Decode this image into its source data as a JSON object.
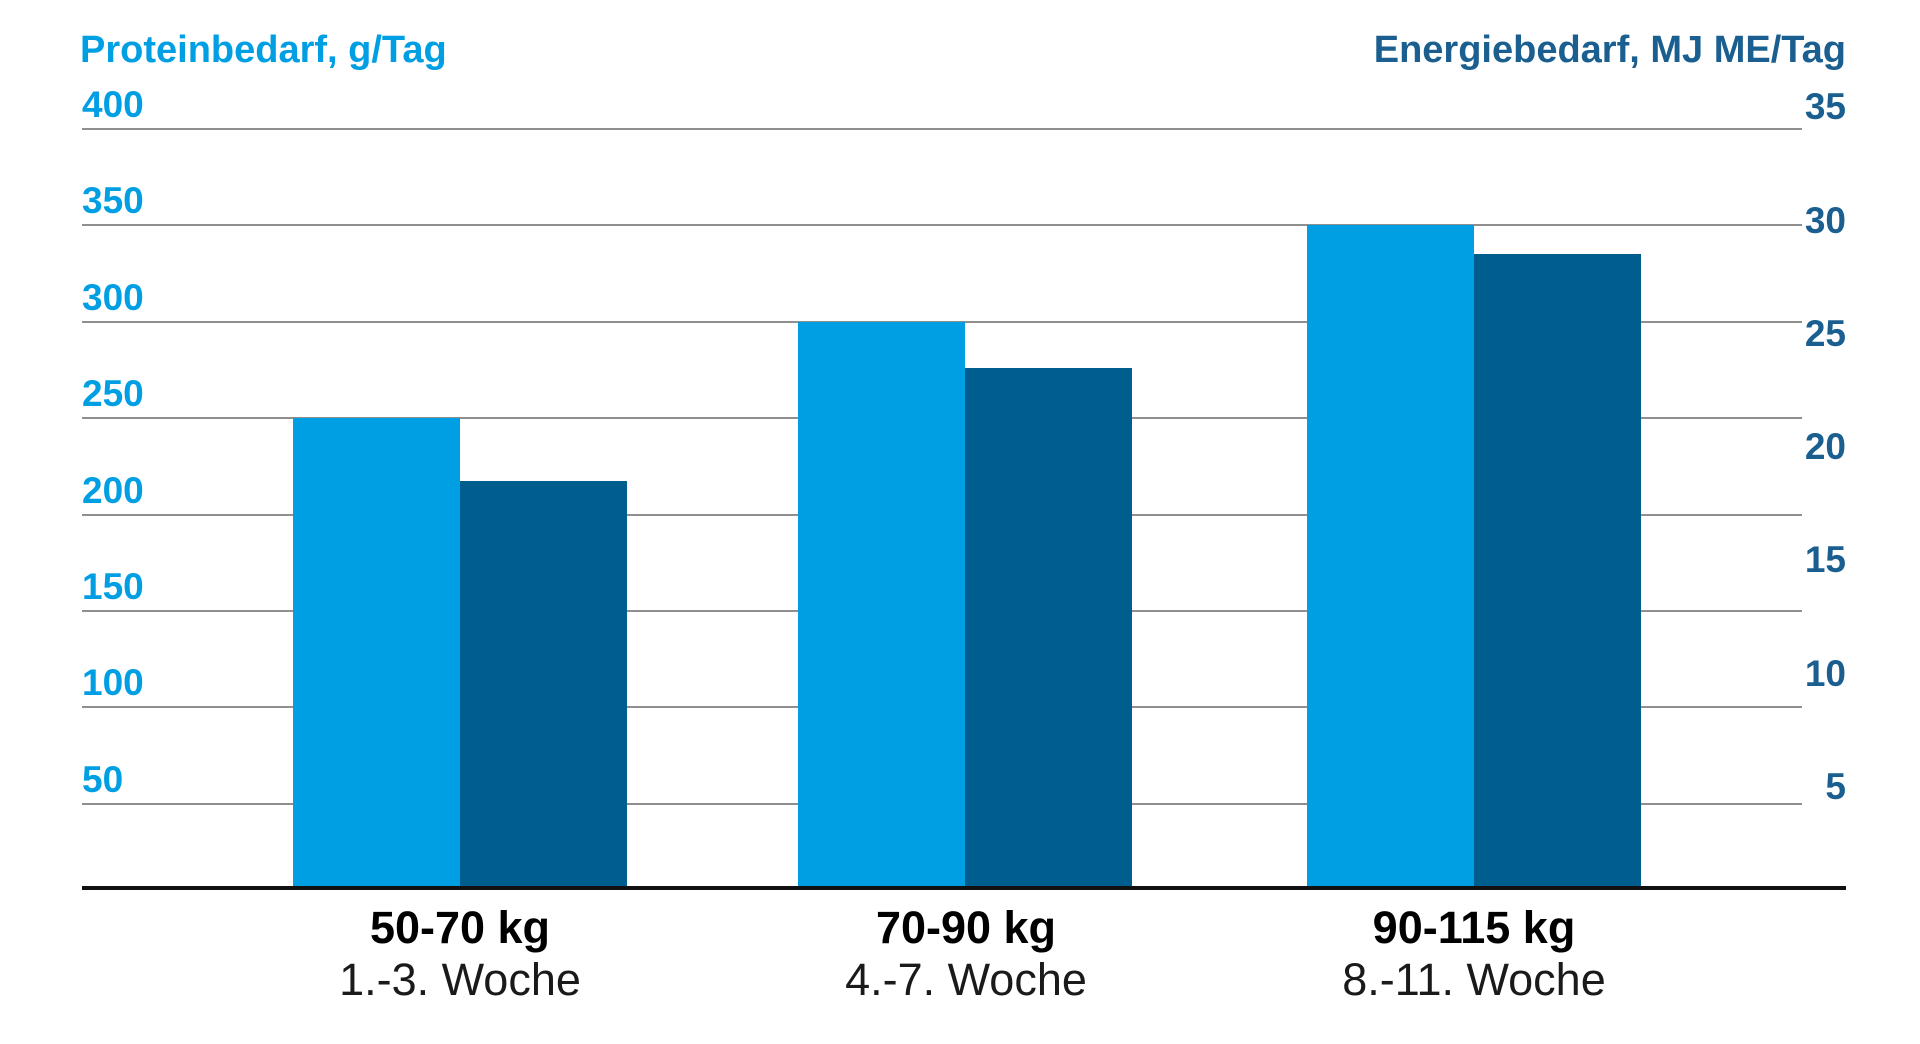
{
  "chart_data": {
    "type": "bar",
    "grid": true,
    "legend_position": "none",
    "background_color": "#ffffff",
    "gridline_color": "#8f8f8f",
    "baseline_color": "#111111",
    "left_axis": {
      "label": "Proteinbedarf, g/Tag",
      "ticks": [
        400,
        350,
        300,
        250,
        200,
        150,
        100,
        50
      ],
      "range": [
        0,
        400
      ],
      "color": "#009FE3"
    },
    "right_axis": {
      "label": "Energiebedarf, MJ ME/Tag",
      "ticks": [
        35,
        30,
        25,
        20,
        15,
        10,
        5
      ],
      "range": [
        0,
        35
      ],
      "color": "#1A5F8F"
    },
    "categories": [
      {
        "weight": "50-70 kg",
        "weeks": "1.-3. Woche"
      },
      {
        "weight": "70-90 kg",
        "weeks": "4.-7. Woche"
      },
      {
        "weight": "90-115 kg",
        "weeks": "8.-11. Woche"
      }
    ],
    "series": [
      {
        "name": "Proteinbedarf",
        "unit": "g/Tag",
        "axis": "left",
        "color": "#009FE3",
        "values": [
          250,
          300,
          350
        ]
      },
      {
        "name": "Energiebedarf",
        "unit": "MJ ME/Tag",
        "axis": "right",
        "color": "#005E8E",
        "values": [
          18.5,
          23.5,
          28.5
        ]
      }
    ]
  }
}
